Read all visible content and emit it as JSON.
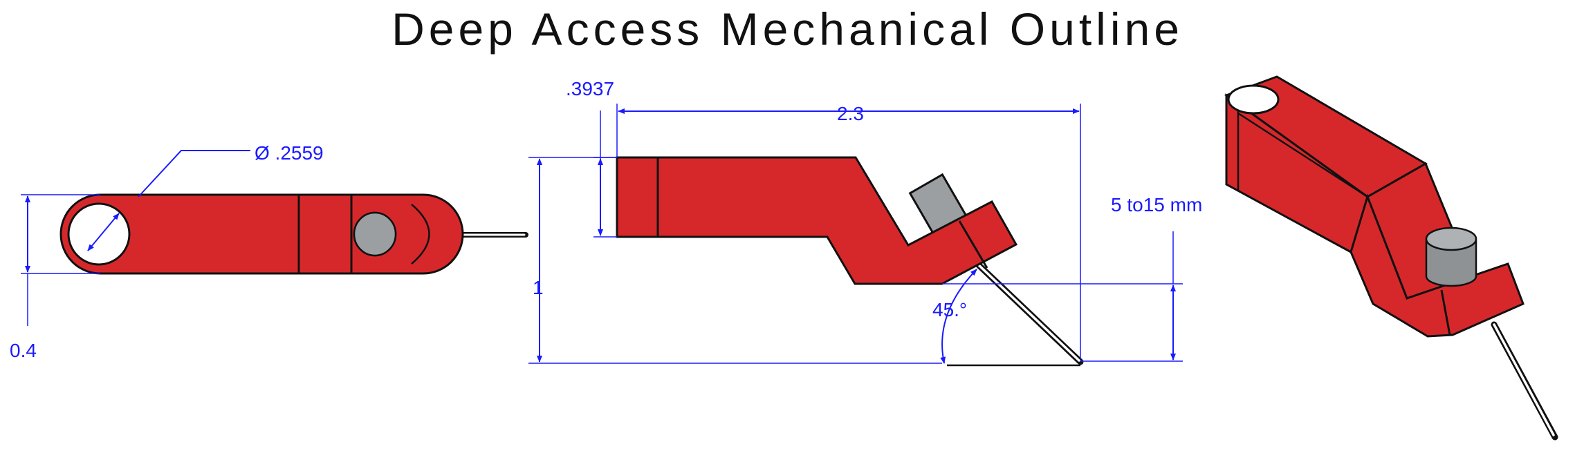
{
  "title": "Deep Access Mechanical Outline",
  "colors": {
    "body_red": "#d6282b",
    "cylinder_gray": "#9b9fa1",
    "dimension_blue": "#1a1aff",
    "outline": "#111111"
  },
  "views": {
    "top": {
      "hole_diameter": "Ø .2559",
      "height": "0.4"
    },
    "side": {
      "thickness": ".3937",
      "length": "2.3",
      "height": "1",
      "angle": "45.°",
      "depth_range": "5 to15 mm"
    },
    "isometric": {}
  }
}
